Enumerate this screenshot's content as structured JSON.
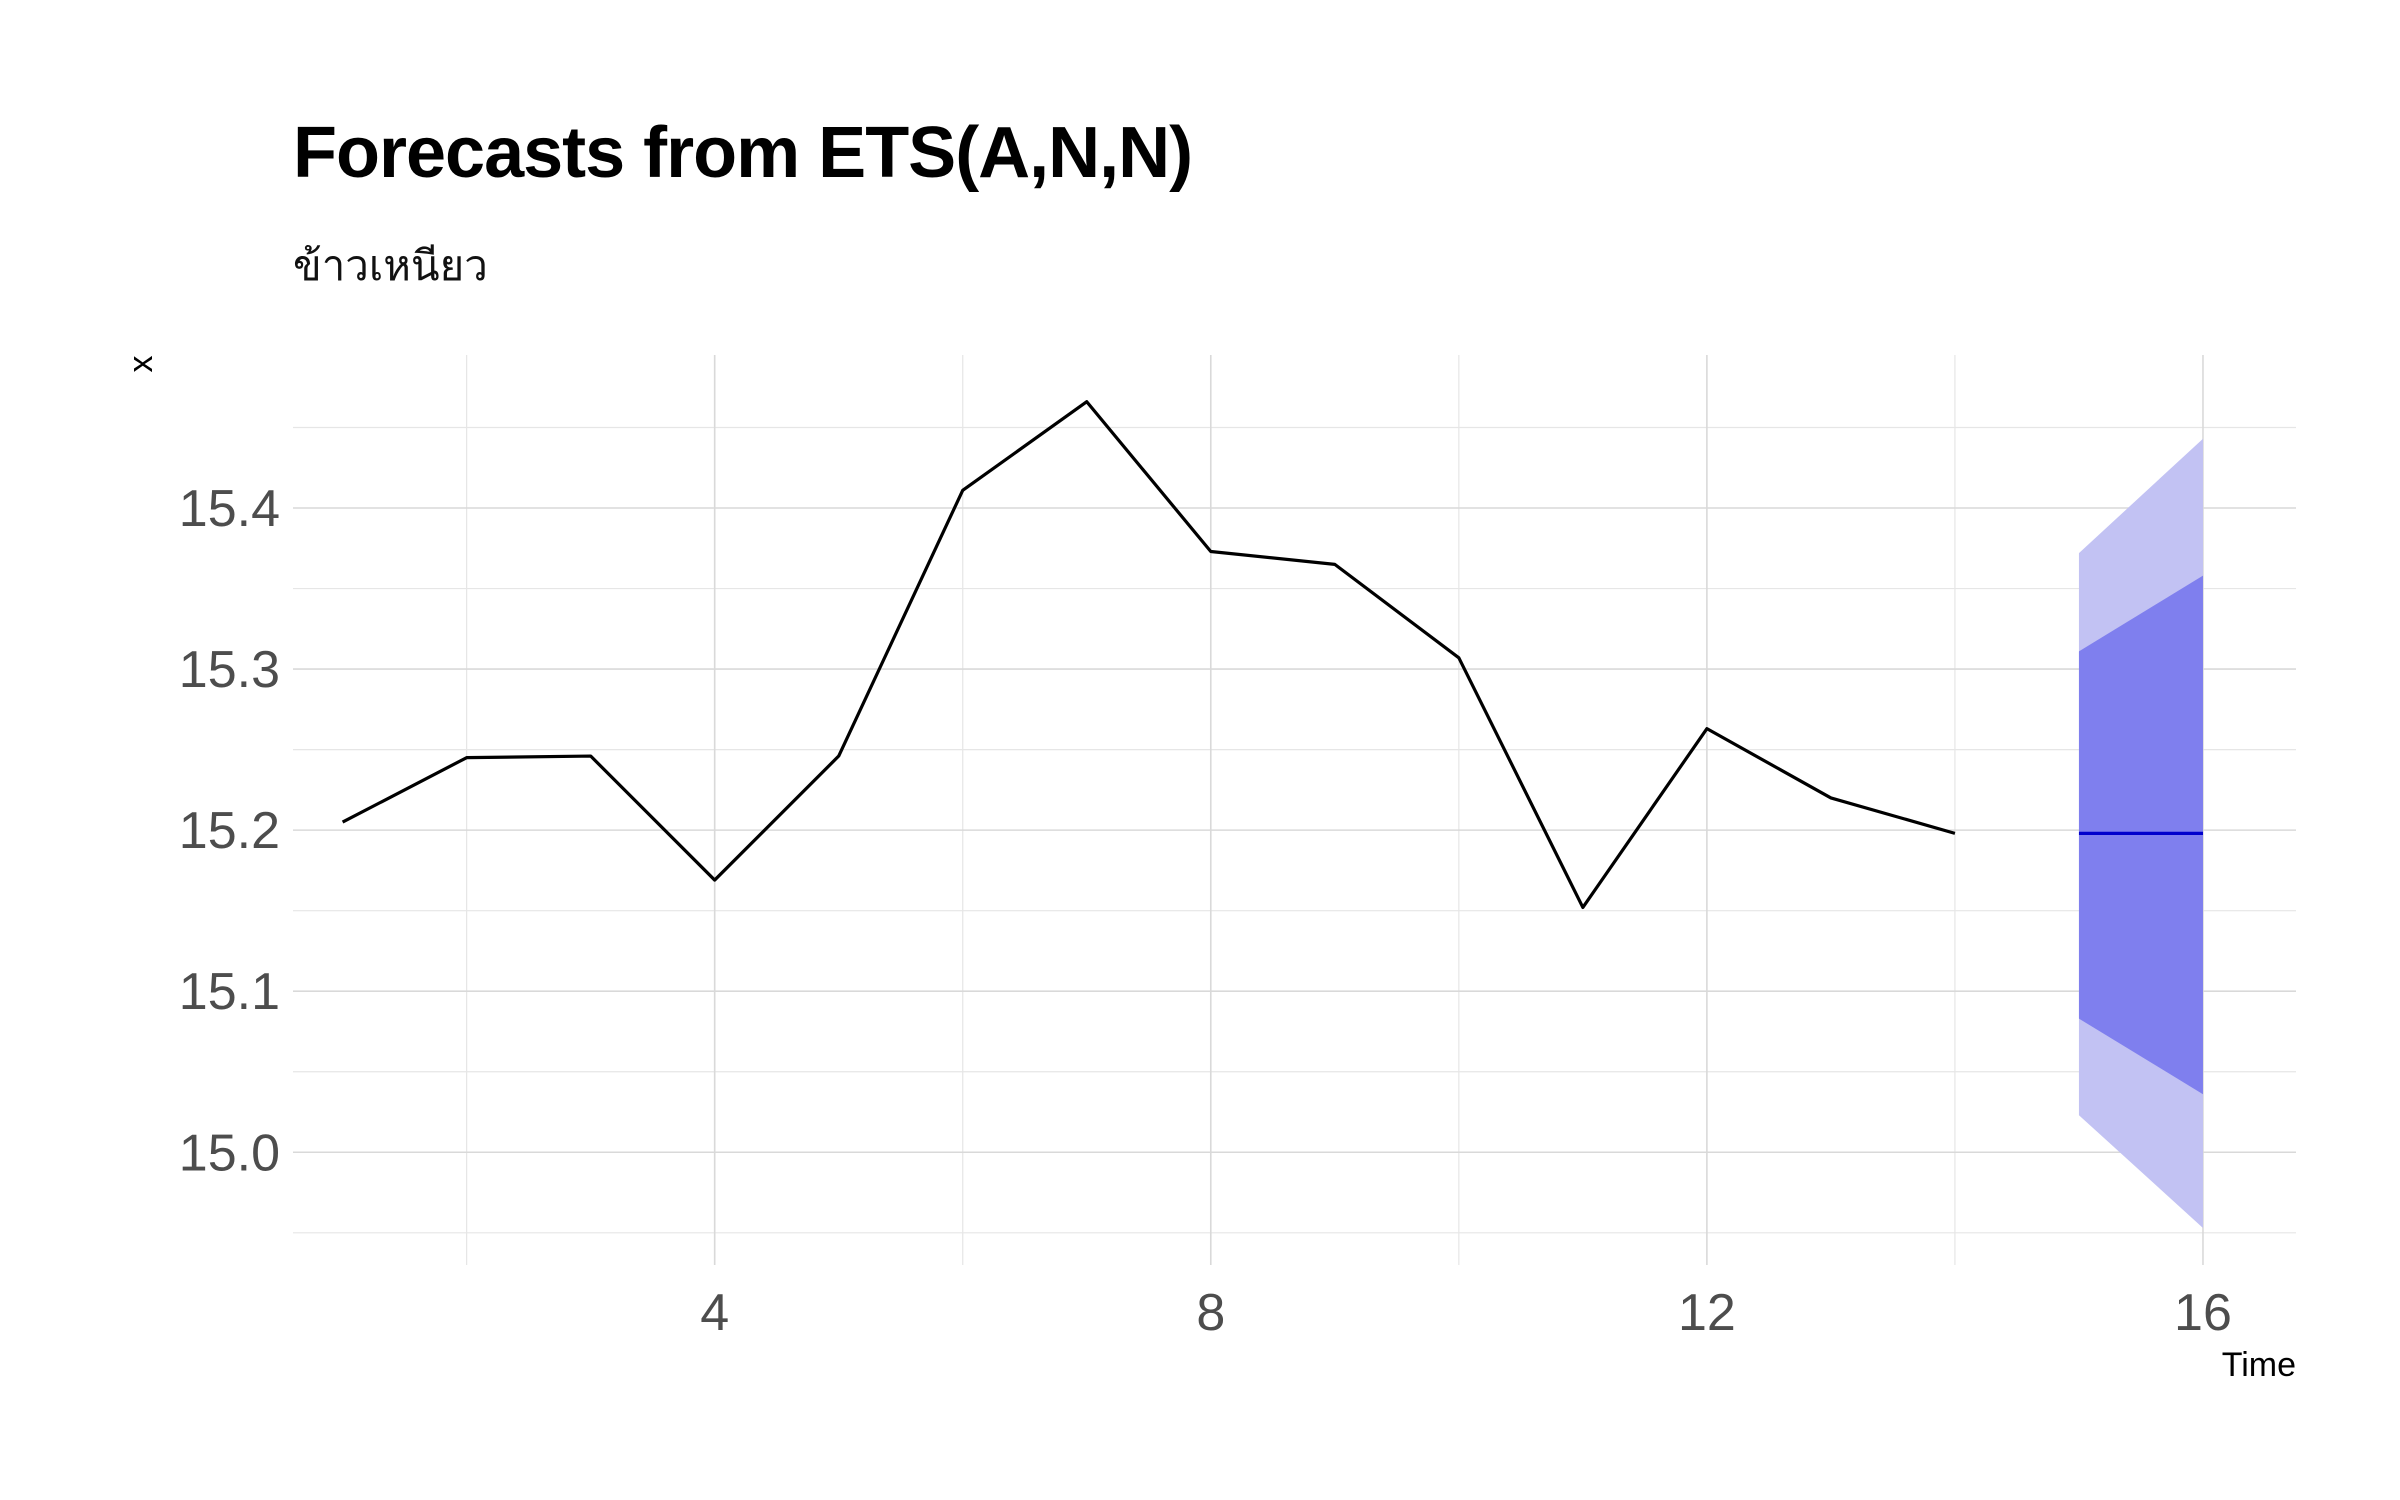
{
  "chart_data": {
    "type": "line",
    "title": "Forecasts from ETS(A,N,N)",
    "subtitle": "ข้าวเหนียว",
    "xlabel": "Time",
    "ylabel": "x",
    "xlim": [
      0.6,
      16.75
    ],
    "ylim": [
      14.93,
      15.495
    ],
    "x_ticks": [
      4,
      8,
      12,
      16
    ],
    "y_ticks": [
      15.0,
      15.1,
      15.2,
      15.3,
      15.4
    ],
    "grid": true,
    "series": [
      {
        "x": [
          1,
          2,
          3,
          4,
          5,
          6,
          7,
          8,
          9,
          10,
          11,
          12,
          13,
          14
        ],
        "values": [
          15.205,
          15.245,
          15.246,
          15.169,
          15.246,
          15.411,
          15.466,
          15.373,
          15.365,
          15.307,
          15.152,
          15.263,
          15.22,
          15.198
        ],
        "color": "#000000"
      }
    ],
    "forecast": {
      "x": [
        15,
        16
      ],
      "mean": [
        15.198,
        15.198
      ],
      "lo80": [
        15.083,
        15.036
      ],
      "hi80": [
        15.311,
        15.358
      ],
      "lo95": [
        15.023,
        14.953
      ],
      "hi95": [
        15.372,
        15.443
      ],
      "mean_color": "#0000cc",
      "band80_color": "#7f7fee",
      "band95_color": "#c2c2f3"
    }
  }
}
